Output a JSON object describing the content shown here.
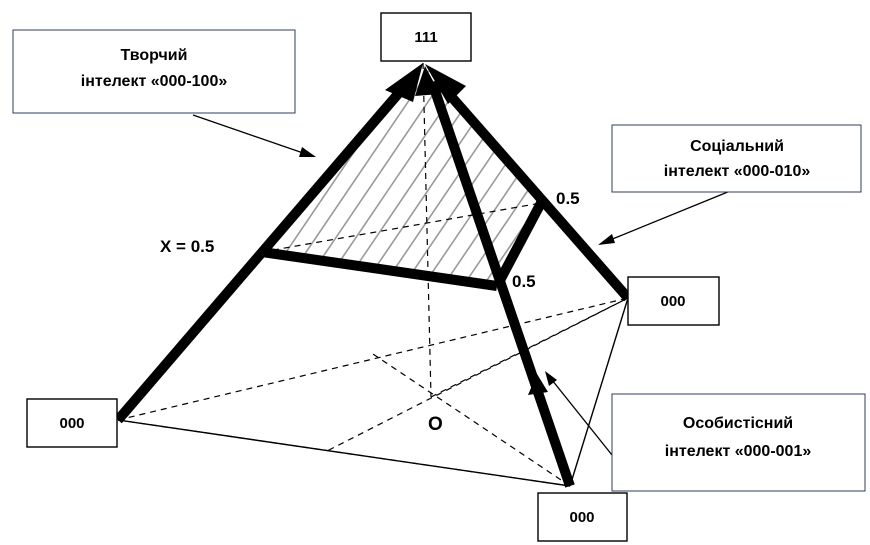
{
  "vertices": {
    "apex": "111",
    "left": "000",
    "right": "000",
    "bottom": "000"
  },
  "callouts": {
    "creative": {
      "line1": "Творчий",
      "line2": "інтелект «000-100»"
    },
    "social": {
      "line1": "Соціальний",
      "line2": "інтелект «000-010»"
    },
    "personal": {
      "line1": "Особистісний",
      "line2": "інтелект «000-001»"
    }
  },
  "values": {
    "x_label": "X = 0.5",
    "right_edge": "0.5",
    "front_edge": "0.5"
  },
  "center_label": "O"
}
